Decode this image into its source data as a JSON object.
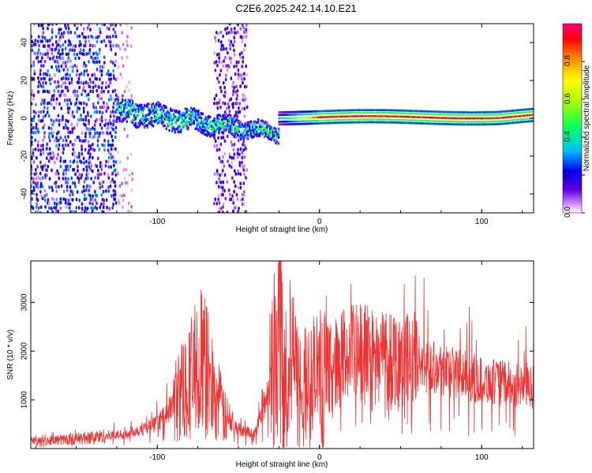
{
  "title": "C2E6.2025.242.14.10.E21",
  "chart_data": [
    {
      "type": "heatmap",
      "xlabel": "Height of straight line (km)",
      "ylabel": "Frequency (Hz)",
      "xlim": [
        -178,
        132
      ],
      "ylim": [
        -50,
        50
      ],
      "x_ticks": [
        -100,
        0,
        100
      ],
      "y_ticks": [
        -40,
        -20,
        0,
        20,
        40
      ],
      "colorbar": {
        "label": "Normalized spectral amplitude",
        "range": [
          0,
          1
        ],
        "ticks": [
          0.0,
          0.2,
          0.4,
          0.6,
          0.8
        ],
        "tick_labels": [
          "0.0",
          "0.2",
          "0.4",
          "0.6",
          "0.8"
        ],
        "colormap": [
          "#ffffff",
          "#cc88ff",
          "#6600dd",
          "#0000ff",
          "#00c0ff",
          "#00ff60",
          "#a0ff00",
          "#ffff00",
          "#ff8800",
          "#ff0000",
          "#ff0080"
        ]
      },
      "features": [
        {
          "name": "noise",
          "x_range": [
            -178,
            -125
          ],
          "freq_range": [
            -50,
            50
          ],
          "amplitude": 0.2
        },
        {
          "name": "noise-band",
          "x_range": [
            -65,
            -45
          ],
          "freq_range": [
            -50,
            50
          ],
          "amplitude": 0.12
        },
        {
          "name": "scatter-trace",
          "x_range": [
            -125,
            -25
          ],
          "freq_center": [
            4,
            -8
          ],
          "amplitude": 0.35
        },
        {
          "name": "carrier",
          "x_range": [
            -25,
            132
          ],
          "freq": 0.5,
          "amplitude": 0.95
        }
      ]
    },
    {
      "type": "line",
      "xlabel": "Height of straight line (km)",
      "ylabel": "SNR (10 * v/v)",
      "xlim": [
        -178,
        132
      ],
      "ylim": [
        0,
        3850
      ],
      "x_ticks": [
        -100,
        0,
        100
      ],
      "y_ticks": [
        1000,
        2000,
        3000
      ],
      "color": "#ee3333",
      "envelope": [
        {
          "x": -178,
          "y": 150
        },
        {
          "x": -150,
          "y": 200
        },
        {
          "x": -120,
          "y": 300
        },
        {
          "x": -100,
          "y": 500
        },
        {
          "x": -90,
          "y": 900
        },
        {
          "x": -80,
          "y": 1500
        },
        {
          "x": -72,
          "y": 1800
        },
        {
          "x": -65,
          "y": 1200
        },
        {
          "x": -58,
          "y": 600
        },
        {
          "x": -50,
          "y": 400
        },
        {
          "x": -40,
          "y": 300
        },
        {
          "x": -32,
          "y": 1100
        },
        {
          "x": -25,
          "y": 2600
        },
        {
          "x": -20,
          "y": 1800
        },
        {
          "x": -12,
          "y": 1200
        },
        {
          "x": -5,
          "y": 1300
        },
        {
          "x": 5,
          "y": 1600
        },
        {
          "x": 15,
          "y": 1900
        },
        {
          "x": 40,
          "y": 1950
        },
        {
          "x": 60,
          "y": 1800
        },
        {
          "x": 80,
          "y": 1600
        },
        {
          "x": 100,
          "y": 1400
        },
        {
          "x": 120,
          "y": 1300
        },
        {
          "x": 132,
          "y": 1250
        }
      ]
    }
  ]
}
